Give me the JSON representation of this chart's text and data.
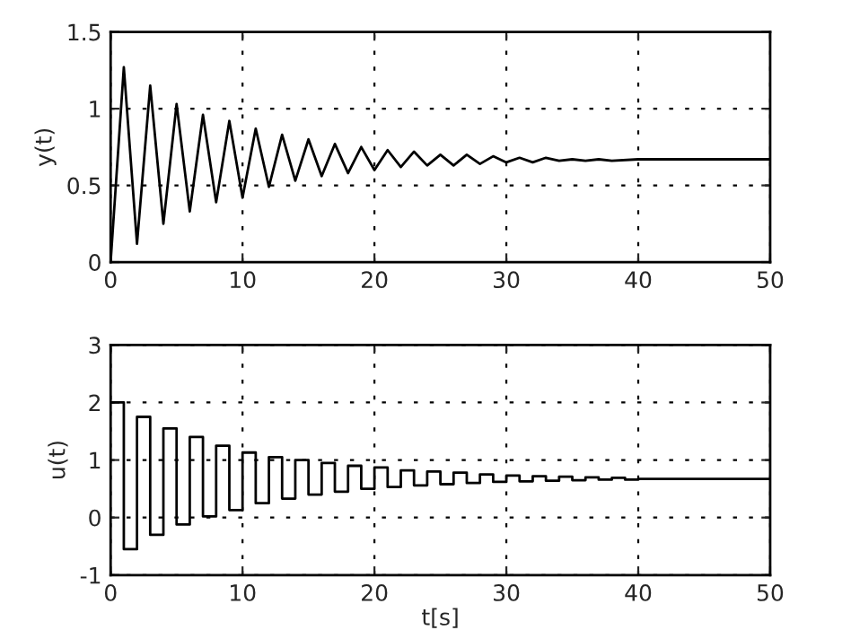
{
  "chart_data": [
    {
      "type": "line",
      "ylabel": "y(t)",
      "xlim": [
        0,
        50
      ],
      "ylim": [
        0,
        1.5
      ],
      "xticks": [
        0,
        10,
        20,
        30,
        40,
        50
      ],
      "yticks": [
        0,
        0.5,
        1,
        1.5
      ],
      "grid": true,
      "line_style": "solid",
      "series": [
        {
          "color": "#000000",
          "x": [
            0,
            1,
            2,
            3,
            4,
            5,
            6,
            7,
            8,
            9,
            10,
            11,
            12,
            13,
            14,
            15,
            16,
            17,
            18,
            19,
            20,
            21,
            22,
            23,
            24,
            25,
            26,
            27,
            28,
            29,
            30,
            31,
            32,
            33,
            34,
            35,
            36,
            37,
            38,
            40,
            45,
            50
          ],
          "values": [
            0,
            1.27,
            0.12,
            1.15,
            0.25,
            1.03,
            0.33,
            0.96,
            0.39,
            0.92,
            0.42,
            0.87,
            0.49,
            0.83,
            0.53,
            0.8,
            0.56,
            0.77,
            0.58,
            0.75,
            0.6,
            0.73,
            0.62,
            0.72,
            0.63,
            0.7,
            0.63,
            0.7,
            0.64,
            0.69,
            0.65,
            0.68,
            0.65,
            0.68,
            0.66,
            0.67,
            0.66,
            0.67,
            0.66,
            0.67,
            0.67,
            0.67
          ]
        }
      ]
    },
    {
      "type": "step",
      "xlabel": "t[s]",
      "ylabel": "u(t)",
      "xlim": [
        0,
        50
      ],
      "ylim": [
        -1,
        3
      ],
      "xticks": [
        0,
        10,
        20,
        30,
        40,
        50
      ],
      "yticks": [
        -1,
        0,
        1,
        2,
        3
      ],
      "grid": true,
      "line_style": "solid",
      "series": [
        {
          "color": "#000000",
          "x": [
            0,
            1,
            2,
            3,
            4,
            5,
            6,
            7,
            8,
            9,
            10,
            11,
            12,
            13,
            14,
            15,
            16,
            17,
            18,
            19,
            20,
            21,
            22,
            23,
            24,
            25,
            26,
            27,
            28,
            29,
            30,
            31,
            32,
            33,
            34,
            35,
            36,
            37,
            38,
            39,
            40,
            50
          ],
          "values": [
            2,
            -0.55,
            1.75,
            -0.3,
            1.55,
            -0.12,
            1.4,
            0.02,
            1.25,
            0.13,
            1.13,
            0.25,
            1.05,
            0.33,
            1.0,
            0.4,
            0.95,
            0.45,
            0.9,
            0.5,
            0.87,
            0.53,
            0.82,
            0.56,
            0.8,
            0.58,
            0.78,
            0.6,
            0.75,
            0.62,
            0.73,
            0.63,
            0.72,
            0.64,
            0.71,
            0.65,
            0.7,
            0.66,
            0.69,
            0.66,
            0.67,
            0.67
          ]
        }
      ]
    }
  ]
}
